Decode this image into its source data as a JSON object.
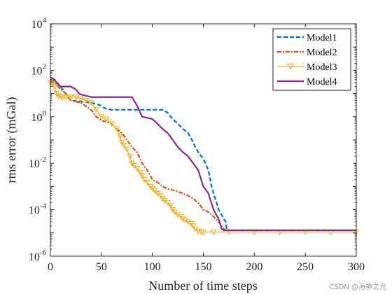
{
  "watermark": "CSDN @海神之光",
  "chart_data": {
    "type": "line",
    "xlabel": "Number of time steps",
    "ylabel": "rms error (mGal)",
    "xlim": [
      0,
      300
    ],
    "ylim": [
      1e-06,
      10000.0
    ],
    "yscale": "log",
    "xticks": [
      "0",
      "50",
      "100",
      "150",
      "200",
      "250",
      "300"
    ],
    "yticks": [
      {
        "base": "10",
        "exp": "-6"
      },
      {
        "base": "10",
        "exp": "-4"
      },
      {
        "base": "10",
        "exp": "-2"
      },
      {
        "base": "10",
        "exp": "0"
      },
      {
        "base": "10",
        "exp": "2"
      },
      {
        "base": "10",
        "exp": "4"
      }
    ],
    "grid": false,
    "legend": "top-right",
    "series": [
      {
        "name": "Model1",
        "color": "#0072BD",
        "style": "dashed",
        "x": [
          0,
          3,
          6,
          10,
          15,
          20,
          30,
          40,
          45,
          50,
          52,
          55,
          60,
          65,
          80,
          90,
          100,
          110,
          115,
          118,
          120,
          125,
          130,
          135,
          140,
          142,
          145,
          148,
          150,
          152,
          155,
          158,
          160,
          163,
          165,
          168,
          170,
          172,
          173,
          175,
          180,
          200,
          250,
          300
        ],
        "y": [
          40,
          35,
          30,
          20,
          10,
          5,
          4.5,
          4,
          3.5,
          3,
          2.5,
          2.2,
          2,
          2,
          2,
          2,
          2,
          2,
          1.5,
          1,
          0.8,
          0.5,
          0.3,
          0.2,
          0.08,
          0.05,
          0.03,
          0.02,
          0.015,
          0.01,
          0.005,
          0.001,
          0.0005,
          0.0002,
          0.0001,
          6e-05,
          4e-05,
          3e-05,
          1.3e-05,
          1.3e-05,
          1.3e-05,
          1.3e-05,
          1.3e-05,
          1.3e-05
        ]
      },
      {
        "name": "Model2",
        "color": "#D95319",
        "style": "dashdot",
        "x": [
          0,
          3,
          6,
          10,
          15,
          20,
          30,
          40,
          45,
          50,
          55,
          60,
          65,
          70,
          75,
          80,
          85,
          90,
          95,
          100,
          105,
          110,
          115,
          120,
          125,
          130,
          135,
          140,
          145,
          150,
          155,
          160,
          165,
          170,
          172,
          175,
          200,
          250,
          300
        ],
        "y": [
          35,
          30,
          25,
          15,
          10,
          5,
          4,
          2,
          1,
          0.7,
          0.6,
          0.5,
          0.3,
          0.2,
          0.1,
          0.05,
          0.03,
          0.01,
          0.005,
          0.002,
          0.0015,
          0.001,
          0.0008,
          0.0007,
          0.0006,
          0.0005,
          0.0004,
          0.0003,
          0.0002,
          0.0001,
          8e-05,
          5e-05,
          3e-05,
          1.5e-05,
          1.3e-05,
          1.3e-05,
          1.3e-05,
          1.3e-05,
          1.3e-05
        ]
      },
      {
        "name": "Model3",
        "color": "#EDB120",
        "style": "solid-triangle",
        "x": [
          0,
          2,
          4,
          6,
          8,
          10,
          12,
          15,
          18,
          20,
          25,
          30,
          35,
          40,
          45,
          50,
          55,
          60,
          65,
          68,
          70,
          72,
          75,
          78,
          80,
          82,
          85,
          88,
          90,
          92,
          95,
          98,
          100,
          102,
          105,
          108,
          110,
          112,
          115,
          118,
          120,
          122,
          125,
          128,
          130,
          132,
          135,
          138,
          140,
          142,
          145,
          148,
          150,
          160,
          175,
          200,
          225,
          250,
          275,
          300
        ],
        "y": [
          30,
          25,
          20,
          10,
          8,
          7,
          7,
          7,
          7,
          7,
          7,
          6,
          5,
          4,
          2,
          1,
          0.8,
          0.5,
          0.3,
          0.15,
          0.08,
          0.06,
          0.04,
          0.02,
          0.01,
          0.008,
          0.006,
          0.004,
          0.003,
          0.002,
          0.0015,
          0.001,
          0.0008,
          0.0007,
          0.0005,
          0.0004,
          0.0003,
          0.00025,
          0.0002,
          0.00015,
          0.0001,
          8e-05,
          6e-05,
          5e-05,
          4e-05,
          3.5e-05,
          3e-05,
          2.5e-05,
          2e-05,
          1.5e-05,
          1.2e-05,
          1.1e-05,
          1.1e-05,
          1.1e-05,
          1.1e-05,
          1.1e-05,
          1.1e-05,
          1.1e-05,
          1.1e-05,
          1.1e-05
        ]
      },
      {
        "name": "Model4",
        "color": "#7E2F8E",
        "style": "solid",
        "x": [
          0,
          2,
          4,
          6,
          8,
          10,
          15,
          20,
          25,
          28,
          30,
          35,
          40,
          50,
          60,
          70,
          80,
          85,
          88,
          90,
          95,
          100,
          105,
          110,
          115,
          120,
          125,
          130,
          135,
          140,
          145,
          150,
          155,
          160,
          165,
          168,
          170,
          175,
          200,
          250,
          300
        ],
        "y": [
          50,
          45,
          40,
          30,
          25,
          20,
          20,
          20,
          15,
          10,
          9,
          8,
          7,
          7,
          7,
          7,
          7,
          3,
          1.5,
          1,
          0.9,
          0.8,
          0.5,
          0.3,
          0.2,
          0.1,
          0.05,
          0.03,
          0.02,
          0.01,
          0.005,
          0.001,
          0.0005,
          0.0001,
          4e-05,
          1.5e-05,
          1.3e-05,
          1.3e-05,
          1.3e-05,
          1.3e-05,
          1.3e-05
        ]
      }
    ]
  }
}
